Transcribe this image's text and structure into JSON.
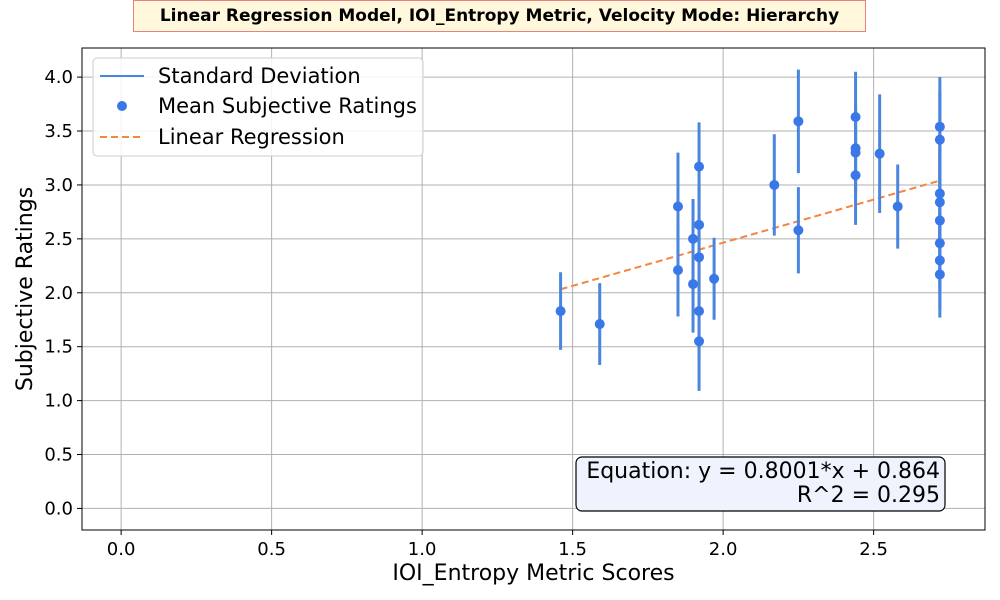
{
  "chart_data": {
    "type": "scatter",
    "title": "Linear Regression Model, IOI_Entropy Metric, Velocity Mode: Hierarchy",
    "xlabel": "IOI_Entropy Metric Scores",
    "ylabel": "Subjective Ratings",
    "xlim": [
      -0.13,
      2.87
    ],
    "ylim": [
      -0.2,
      4.27
    ],
    "xticks": [
      0.0,
      0.5,
      1.0,
      1.5,
      2.0,
      2.5
    ],
    "yticks": [
      0.0,
      0.5,
      1.0,
      1.5,
      2.0,
      2.5,
      3.0,
      3.5,
      4.0
    ],
    "grid": true,
    "legend_position": "top-left",
    "legend": [
      "Standard Deviation",
      "Mean Subjective Ratings",
      "Linear Regression"
    ],
    "colors": {
      "points": "#3b78e7",
      "errorbars": "#4a86e0",
      "regression": "#f5853f"
    },
    "points": [
      {
        "x": 1.46,
        "y": 1.83,
        "sd": 0.36
      },
      {
        "x": 1.59,
        "y": 1.71,
        "sd": 0.38
      },
      {
        "x": 1.85,
        "y": 2.8,
        "sd": 0.5
      },
      {
        "x": 1.85,
        "y": 2.21,
        "sd": 0.43
      },
      {
        "x": 1.9,
        "y": 2.5,
        "sd": 0.37
      },
      {
        "x": 1.9,
        "y": 2.08,
        "sd": 0.45
      },
      {
        "x": 1.92,
        "y": 3.17,
        "sd": 0.41
      },
      {
        "x": 1.92,
        "y": 2.63,
        "sd": 0.36
      },
      {
        "x": 1.92,
        "y": 2.33,
        "sd": 0.41
      },
      {
        "x": 1.92,
        "y": 1.83,
        "sd": 0.45
      },
      {
        "x": 1.92,
        "y": 1.55,
        "sd": 0.46
      },
      {
        "x": 1.97,
        "y": 2.13,
        "sd": 0.38
      },
      {
        "x": 2.17,
        "y": 3.0,
        "sd": 0.47
      },
      {
        "x": 2.25,
        "y": 3.59,
        "sd": 0.48
      },
      {
        "x": 2.25,
        "y": 2.58,
        "sd": 0.4
      },
      {
        "x": 2.44,
        "y": 3.63,
        "sd": 0.42
      },
      {
        "x": 2.44,
        "y": 3.34,
        "sd": 0.41
      },
      {
        "x": 2.44,
        "y": 3.3,
        "sd": 0.42
      },
      {
        "x": 2.44,
        "y": 3.09,
        "sd": 0.46
      },
      {
        "x": 2.52,
        "y": 3.29,
        "sd": 0.55
      },
      {
        "x": 2.58,
        "y": 2.8,
        "sd": 0.39
      },
      {
        "x": 2.72,
        "y": 3.54,
        "sd": 0.46
      },
      {
        "x": 2.72,
        "y": 3.42,
        "sd": 0.44
      },
      {
        "x": 2.72,
        "y": 2.92,
        "sd": 0.46
      },
      {
        "x": 2.72,
        "y": 2.84,
        "sd": 0.5
      },
      {
        "x": 2.72,
        "y": 2.67,
        "sd": 0.47
      },
      {
        "x": 2.72,
        "y": 2.46,
        "sd": 0.45
      },
      {
        "x": 2.72,
        "y": 2.3,
        "sd": 0.45
      },
      {
        "x": 2.72,
        "y": 2.17,
        "sd": 0.4
      }
    ],
    "regression": {
      "slope": 0.8001,
      "intercept": 0.864,
      "x_range": [
        1.46,
        2.72
      ]
    },
    "annotation": {
      "equation": "Equation: y = 0.8001*x + 0.864",
      "r2": "R^2 = 0.295"
    }
  }
}
